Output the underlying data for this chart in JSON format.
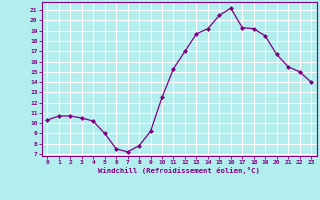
{
  "x": [
    0,
    1,
    2,
    3,
    4,
    5,
    6,
    7,
    8,
    9,
    10,
    11,
    12,
    13,
    14,
    15,
    16,
    17,
    18,
    19,
    20,
    21,
    22,
    23
  ],
  "y": [
    10.3,
    10.7,
    10.7,
    10.5,
    10.2,
    9.0,
    7.5,
    7.2,
    7.8,
    9.2,
    12.5,
    15.3,
    17.0,
    18.7,
    19.2,
    20.5,
    21.2,
    19.3,
    19.2,
    18.5,
    16.7,
    15.5,
    15.0,
    14.0
  ],
  "color": "#800080",
  "bg_color": "#b2eeee",
  "grid_color": "#ffffff",
  "xlabel": "Windchill (Refroidissement éolien,°C)",
  "ylabel_ticks": [
    7,
    8,
    9,
    10,
    11,
    12,
    13,
    14,
    15,
    16,
    17,
    18,
    19,
    20,
    21
  ],
  "xlim": [
    -0.5,
    23.5
  ],
  "ylim": [
    6.8,
    21.8
  ],
  "xticks": [
    0,
    1,
    2,
    3,
    4,
    5,
    6,
    7,
    8,
    9,
    10,
    11,
    12,
    13,
    14,
    15,
    16,
    17,
    18,
    19,
    20,
    21,
    22,
    23
  ]
}
